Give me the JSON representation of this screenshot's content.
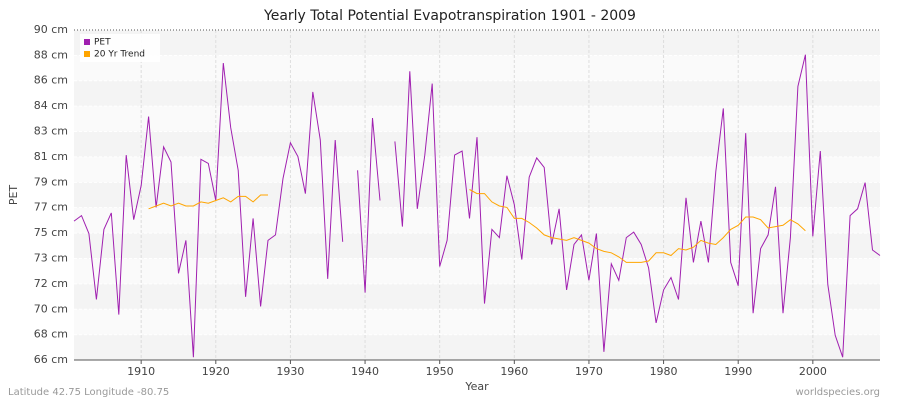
{
  "chart_data": {
    "type": "line",
    "title": "Yearly Total Potential Evapotranspiration 1901 - 2009",
    "x_label": "Year",
    "y_label": "PET",
    "location": "Latitude 42.75 Longitude -80.75",
    "source": "worldspecies.org",
    "legend": "upper left",
    "grid": true,
    "xlim": [
      1901,
      2009
    ],
    "xticks": [
      1910,
      1920,
      1930,
      1940,
      1950,
      1960,
      1970,
      1980,
      1990,
      2000
    ],
    "ylim": [
      66,
      90
    ],
    "yticks": [
      {
        "value": 66,
        "label": "66 cm"
      },
      {
        "value": 67.85,
        "label": "68 cm"
      },
      {
        "value": 69.69,
        "label": "70 cm"
      },
      {
        "value": 71.54,
        "label": "72 cm"
      },
      {
        "value": 73.38,
        "label": "73 cm"
      },
      {
        "value": 75.23,
        "label": "75 cm"
      },
      {
        "value": 77.08,
        "label": "77 cm"
      },
      {
        "value": 78.92,
        "label": "79 cm"
      },
      {
        "value": 80.77,
        "label": "81 cm"
      },
      {
        "value": 82.62,
        "label": "83 cm"
      },
      {
        "value": 84.46,
        "label": "84 cm"
      },
      {
        "value": 86.31,
        "label": "86 cm"
      },
      {
        "value": 88.15,
        "label": "88 cm"
      },
      {
        "value": 90,
        "label": "90 cm"
      }
    ],
    "x": [
      1901,
      1902,
      1903,
      1904,
      1905,
      1906,
      1907,
      1908,
      1909,
      1910,
      1911,
      1912,
      1913,
      1914,
      1915,
      1916,
      1917,
      1918,
      1919,
      1920,
      1921,
      1922,
      1923,
      1924,
      1925,
      1926,
      1927,
      1928,
      1929,
      1930,
      1931,
      1932,
      1933,
      1934,
      1935,
      1936,
      1937,
      1938,
      1939,
      1940,
      1941,
      1942,
      1943,
      1944,
      1945,
      1946,
      1947,
      1948,
      1949,
      1950,
      1951,
      1952,
      1953,
      1954,
      1955,
      1956,
      1957,
      1958,
      1959,
      1960,
      1961,
      1962,
      1963,
      1964,
      1965,
      1966,
      1967,
      1968,
      1969,
      1970,
      1971,
      1972,
      1973,
      1974,
      1975,
      1976,
      1977,
      1978,
      1979,
      1980,
      1981,
      1982,
      1983,
      1984,
      1985,
      1986,
      1987,
      1988,
      1989,
      1990,
      1991,
      1992,
      1993,
      1994,
      1995,
      1996,
      1997,
      1998,
      1999,
      2000,
      2001,
      2002,
      2003,
      2004,
      2005,
      2006,
      2007,
      2008,
      2009
    ],
    "series": [
      {
        "name": "PET",
        "color": "#a020b0",
        "values": [
          76.1,
          76.5,
          75.2,
          70.4,
          75.5,
          76.7,
          69.3,
          80.9,
          76.2,
          78.7,
          83.7,
          77.1,
          81.5,
          80.4,
          72.3,
          74.7,
          66.2,
          80.6,
          80.3,
          77.6,
          87.6,
          82.9,
          79.8,
          70.6,
          76.3,
          69.9,
          74.7,
          75.1,
          79.2,
          81.8,
          80.8,
          78.1,
          85.5,
          82.0,
          71.9,
          82.0,
          74.6,
          null,
          79.8,
          70.9,
          83.6,
          77.6,
          null,
          81.9,
          75.7,
          87.0,
          77.0,
          80.9,
          86.1,
          72.8,
          74.7,
          80.9,
          81.2,
          76.3,
          82.2,
          70.1,
          75.5,
          74.9,
          79.4,
          77.3,
          73.3,
          79.3,
          80.7,
          80.0,
          74.4,
          77.0,
          71.1,
          74.4,
          75.1,
          71.8,
          75.2,
          66.6,
          73.0,
          71.8,
          74.9,
          75.3,
          74.4,
          72.7,
          68.7,
          71.1,
          72.0,
          70.4,
          77.8,
          73.1,
          76.1,
          73.1,
          79.7,
          84.3,
          73.1,
          71.4,
          82.5,
          69.4,
          74.1,
          75.1,
          78.6,
          69.4,
          74.9,
          85.9,
          88.2,
          75.0,
          81.2,
          71.5,
          67.8,
          66.2,
          76.5,
          77.0,
          78.9,
          74.0,
          73.6
        ]
      },
      {
        "name": "20 Yr Trend",
        "color": "#ffa500",
        "values": [
          null,
          null,
          null,
          null,
          null,
          null,
          null,
          null,
          null,
          null,
          77.0,
          77.2,
          77.4,
          77.2,
          77.4,
          77.2,
          77.2,
          77.5,
          77.4,
          77.6,
          77.8,
          77.5,
          77.9,
          77.9,
          77.5,
          78.0,
          78.0,
          null,
          null,
          null,
          null,
          null,
          null,
          null,
          null,
          null,
          null,
          null,
          null,
          null,
          null,
          null,
          null,
          null,
          null,
          null,
          null,
          null,
          null,
          null,
          null,
          null,
          null,
          78.4,
          78.1,
          78.1,
          77.5,
          77.2,
          77.1,
          76.3,
          76.3,
          76.0,
          75.6,
          75.1,
          74.9,
          74.8,
          74.7,
          74.9,
          74.7,
          74.5,
          74.1,
          73.9,
          73.8,
          73.5,
          73.1,
          73.1,
          73.1,
          73.2,
          73.8,
          73.8,
          73.6,
          74.1,
          74.0,
          74.2,
          74.7,
          74.5,
          74.4,
          74.9,
          75.5,
          75.8,
          76.4,
          76.4,
          76.2,
          75.6,
          75.7,
          75.8,
          76.2,
          75.9,
          75.4,
          null,
          null,
          null,
          null,
          null,
          null,
          null,
          null,
          null,
          null
        ]
      }
    ]
  }
}
